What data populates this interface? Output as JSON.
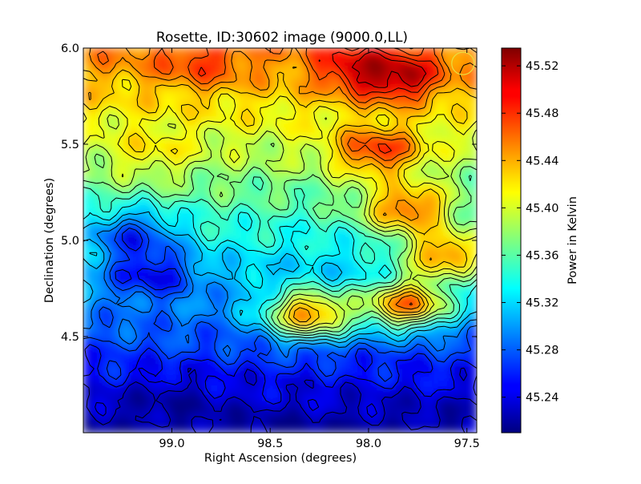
{
  "chart_data": {
    "type": "heatmap",
    "title": "Rosette, ID:30602 image (9000.0,LL)",
    "xlabel": "Right Ascension (degrees)",
    "ylabel": "Declination (degrees)",
    "xlim": [
      99.45,
      97.45
    ],
    "ylim": [
      4.0,
      6.0
    ],
    "x_ticks": [
      99.0,
      98.5,
      98.0,
      97.5
    ],
    "x_tick_labels": [
      "99.0",
      "98.5",
      "98.0",
      "97.5"
    ],
    "y_ticks": [
      4.5,
      5.0,
      5.5,
      6.0
    ],
    "y_tick_labels": [
      "4.5",
      "5.0",
      "5.5",
      "6.0"
    ],
    "contours": "on",
    "colormap": "jet",
    "colorbar": {
      "label": "Power in Kelvin",
      "range": [
        45.21,
        45.535
      ],
      "ticks": [
        45.24,
        45.28,
        45.32,
        45.36,
        45.4,
        45.44,
        45.48,
        45.52
      ],
      "tick_labels": [
        "45.24",
        "45.28",
        "45.32",
        "45.36",
        "45.40",
        "45.44",
        "45.48",
        "45.52"
      ]
    },
    "beam_marker": {
      "ra": 97.52,
      "dec": 5.92,
      "color": "#e8e040"
    },
    "features": [
      {
        "ra": 97.85,
        "dec": 5.85,
        "value": 45.52
      },
      {
        "ra": 98.05,
        "dec": 5.9,
        "value": 45.5
      },
      {
        "ra": 98.85,
        "dec": 5.93,
        "value": 45.48
      },
      {
        "ra": 97.95,
        "dec": 5.47,
        "value": 45.49
      },
      {
        "ra": 97.8,
        "dec": 5.17,
        "value": 45.47
      },
      {
        "ra": 97.8,
        "dec": 4.67,
        "value": 45.47
      },
      {
        "ra": 98.3,
        "dec": 4.62,
        "value": 45.46
      },
      {
        "ra": 97.6,
        "dec": 4.93,
        "value": 45.46
      },
      {
        "ra": 99.1,
        "dec": 4.82,
        "value": 45.24
      },
      {
        "ra": 99.2,
        "dec": 5.03,
        "value": 45.26
      },
      {
        "ra": 99.0,
        "dec": 4.15,
        "value": 45.22
      },
      {
        "ra": 99.1,
        "dec": 5.47,
        "value": 45.42
      }
    ]
  }
}
